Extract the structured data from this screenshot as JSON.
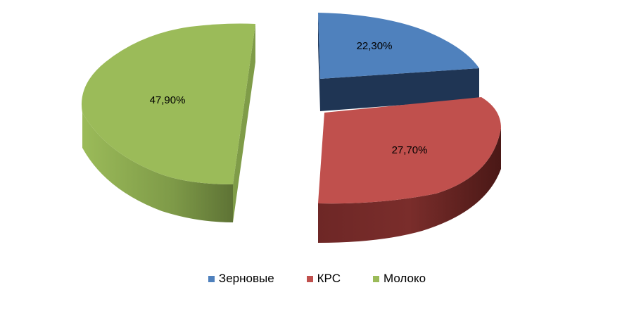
{
  "chart_data": {
    "type": "pie",
    "style": "3d-exploded",
    "categories": [
      "Зерновые",
      "КРС",
      "Молоко"
    ],
    "values": [
      22.3,
      27.7,
      47.9
    ],
    "labels": [
      "22,30%",
      "27,70%",
      "47,90%"
    ],
    "colors": [
      "#4F81BD",
      "#C0504D",
      "#9BBB59"
    ],
    "title": "",
    "legend_position": "bottom"
  },
  "legend": {
    "items": [
      {
        "label": "Зерновые",
        "color": "#4F81BD"
      },
      {
        "label": "КРС",
        "color": "#C0504D"
      },
      {
        "label": "Молоко",
        "color": "#9BBB59"
      }
    ]
  }
}
